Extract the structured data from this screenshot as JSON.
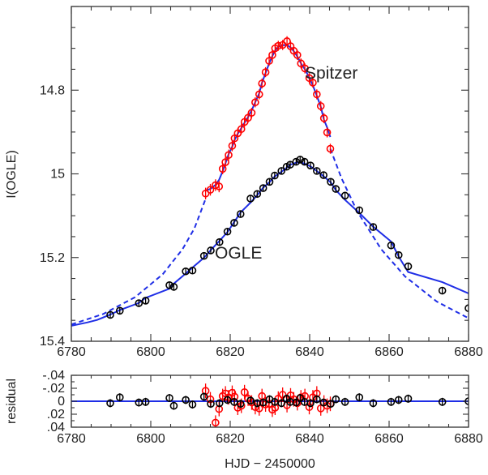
{
  "chart_data": [
    {
      "type": "scatter",
      "xlabel": "",
      "ylabel": "I(OGLE)",
      "xlim": [
        6780,
        6880
      ],
      "ylim": [
        15.4,
        14.6
      ],
      "y_inverted": true,
      "x_ticks": [
        "6780",
        "6800",
        "6820",
        "6840",
        "6860",
        "6880"
      ],
      "y_ticks": [
        "14.8",
        "15",
        "15.2",
        "15.4"
      ],
      "annotations": [
        "Spitzer",
        "OGLE"
      ],
      "colors": {
        "ogle": "#000000",
        "spitzer": "#ff0000",
        "model": "#1f2ee6",
        "axes": "#333333"
      },
      "series": [
        {
          "name": "Spitzer",
          "marker": "open-circle-errorbar",
          "x": [
            6813.8,
            6815.0,
            6816.3,
            6817.2,
            6818.1,
            6818.8,
            6819.6,
            6820.5,
            6821.1,
            6821.9,
            6822.8,
            6823.6,
            6824.5,
            6825.4,
            6826.3,
            6827.3,
            6828.0,
            6828.9,
            6829.8,
            6830.6,
            6831.3,
            6832.1,
            6833.2,
            6834.3,
            6835.2,
            6836.0,
            6836.9,
            6837.8,
            6838.8,
            6839.9,
            6840.8,
            6841.8,
            6842.8,
            6843.6,
            6844.4,
            6845.2
          ],
          "y": [
            15.047,
            15.038,
            15.027,
            15.03,
            14.988,
            14.972,
            14.955,
            14.933,
            14.915,
            14.903,
            14.893,
            14.876,
            14.866,
            14.854,
            14.829,
            14.81,
            14.784,
            14.757,
            14.73,
            14.716,
            14.7,
            14.694,
            14.692,
            14.683,
            14.695,
            14.706,
            14.716,
            14.736,
            14.748,
            14.771,
            14.782,
            14.81,
            14.838,
            14.867,
            14.901,
            14.94
          ],
          "error": [
            0.012,
            0.012,
            0.012,
            0.012,
            0.011,
            0.011,
            0.011,
            0.011,
            0.011,
            0.01,
            0.01,
            0.01,
            0.01,
            0.01,
            0.01,
            0.01,
            0.01,
            0.01,
            0.01,
            0.01,
            0.01,
            0.01,
            0.01,
            0.01,
            0.01,
            0.01,
            0.01,
            0.01,
            0.01,
            0.01,
            0.01,
            0.01,
            0.01,
            0.01,
            0.01,
            0.01
          ]
        },
        {
          "name": "OGLE",
          "marker": "open-circle-errorbar",
          "x": [
            6789.8,
            6792.2,
            6797.0,
            6798.7,
            6804.7,
            6805.8,
            6808.8,
            6810.5,
            6813.4,
            6815.1,
            6817.3,
            6819.3,
            6821.0,
            6822.6,
            6825.1,
            6826.8,
            6828.3,
            6829.9,
            6831.2,
            6832.9,
            6834.2,
            6835.1,
            6836.6,
            6837.6,
            6838.7,
            6840.2,
            6841.8,
            6843.5,
            6845.3,
            6846.6,
            6848.9,
            6852.5,
            6856.0,
            6860.5,
            6862.4,
            6864.8,
            6873.4,
            6880.0
          ],
          "y": [
            15.337,
            15.327,
            15.309,
            15.303,
            15.266,
            15.27,
            15.233,
            15.231,
            15.196,
            15.183,
            15.163,
            15.138,
            15.117,
            15.096,
            15.059,
            15.048,
            15.034,
            15.019,
            15.004,
            14.993,
            14.983,
            14.978,
            14.971,
            14.966,
            14.971,
            14.98,
            14.993,
            15.003,
            15.019,
            15.036,
            15.052,
            15.087,
            15.127,
            15.171,
            15.194,
            15.221,
            15.279,
            15.321
          ],
          "error": [
            0.006,
            0.006,
            0.006,
            0.006,
            0.006,
            0.006,
            0.006,
            0.006,
            0.005,
            0.005,
            0.005,
            0.005,
            0.005,
            0.005,
            0.005,
            0.005,
            0.005,
            0.005,
            0.005,
            0.005,
            0.005,
            0.005,
            0.005,
            0.005,
            0.005,
            0.005,
            0.005,
            0.005,
            0.005,
            0.005,
            0.005,
            0.005,
            0.005,
            0.005,
            0.005,
            0.005,
            0.006,
            0.006
          ]
        }
      ]
    },
    {
      "type": "scatter",
      "xlabel": "HJD − 2450000",
      "ylabel": "residual",
      "xlim": [
        6780,
        6880
      ],
      "ylim": [
        0.04,
        -0.04
      ],
      "y_inverted": true,
      "x_ticks": [
        "6780",
        "6800",
        "6820",
        "6840",
        "6860",
        "6880"
      ],
      "y_ticks": [
        "-.04",
        "-.02",
        "0",
        ".02",
        ".04"
      ],
      "reference_line": 0,
      "colors": {
        "ogle": "#000000",
        "spitzer": "#ff0000",
        "zero_line": "#1f2ee6",
        "axes": "#333333"
      },
      "series": [
        {
          "name": "Spitzer",
          "marker": "open-circle-errorbar",
          "x": [
            6813.8,
            6815.0,
            6816.3,
            6817.2,
            6818.1,
            6818.8,
            6819.6,
            6820.5,
            6821.1,
            6821.9,
            6822.8,
            6823.6,
            6824.5,
            6825.4,
            6826.3,
            6827.3,
            6828.0,
            6828.9,
            6829.8,
            6830.6,
            6831.3,
            6832.1,
            6833.2,
            6834.3,
            6835.2,
            6836.0,
            6836.9,
            6837.8,
            6838.8,
            6839.9,
            6840.8,
            6841.8,
            6842.8,
            6843.6,
            6844.4,
            6845.2
          ],
          "y": [
            -0.016,
            -0.003,
            0.033,
            0.012,
            -0.008,
            -0.012,
            -0.006,
            -0.013,
            -0.007,
            0.01,
            0.007,
            -0.014,
            -0.004,
            0.002,
            0.009,
            0.011,
            -0.008,
            0.005,
            0.004,
            0.013,
            0.01,
            -0.004,
            -0.01,
            0.006,
            -0.009,
            -0.003,
            0.003,
            -0.006,
            -0.008,
            0.009,
            -0.006,
            -0.012,
            0.011,
            0.002,
            0.007,
            0.004
          ],
          "error": [
            0.01,
            0.01,
            0.01,
            0.01,
            0.01,
            0.01,
            0.01,
            0.01,
            0.01,
            0.01,
            0.01,
            0.01,
            0.01,
            0.01,
            0.01,
            0.01,
            0.01,
            0.01,
            0.01,
            0.01,
            0.01,
            0.01,
            0.01,
            0.01,
            0.01,
            0.01,
            0.01,
            0.01,
            0.01,
            0.01,
            0.01,
            0.01,
            0.01,
            0.01,
            0.01,
            0.01
          ]
        },
        {
          "name": "OGLE",
          "marker": "open-circle-errorbar",
          "x": [
            6789.8,
            6792.2,
            6797.0,
            6798.7,
            6804.7,
            6805.8,
            6808.8,
            6810.5,
            6813.4,
            6815.1,
            6817.3,
            6819.3,
            6821.0,
            6822.6,
            6825.1,
            6826.8,
            6828.3,
            6829.9,
            6831.2,
            6832.9,
            6834.2,
            6835.1,
            6836.6,
            6837.6,
            6838.7,
            6840.2,
            6841.8,
            6843.5,
            6845.3,
            6846.6,
            6848.9,
            6852.5,
            6856.0,
            6860.5,
            6862.4,
            6864.8,
            6873.4,
            6880.0
          ],
          "y": [
            0.003,
            -0.006,
            0.002,
            0.001,
            -0.005,
            0.007,
            -0.002,
            0.005,
            -0.007,
            0.004,
            0.003,
            -0.002,
            0.001,
            0.004,
            -0.001,
            0.003,
            0.002,
            -0.003,
            0.001,
            0.003,
            -0.004,
            0.001,
            0.002,
            -0.005,
            0.001,
            0.003,
            -0.003,
            0.002,
            0.004,
            -0.003,
            0.001,
            -0.006,
            0.003,
            0.001,
            -0.002,
            -0.004,
            0.001,
            0.0
          ],
          "error": [
            0.005,
            0.005,
            0.005,
            0.005,
            0.005,
            0.005,
            0.005,
            0.005,
            0.005,
            0.005,
            0.005,
            0.005,
            0.005,
            0.005,
            0.005,
            0.005,
            0.005,
            0.005,
            0.005,
            0.005,
            0.005,
            0.005,
            0.005,
            0.005,
            0.005,
            0.005,
            0.005,
            0.005,
            0.005,
            0.005,
            0.005,
            0.005,
            0.005,
            0.005,
            0.005,
            0.005,
            0.005,
            0.005
          ]
        }
      ]
    }
  ]
}
